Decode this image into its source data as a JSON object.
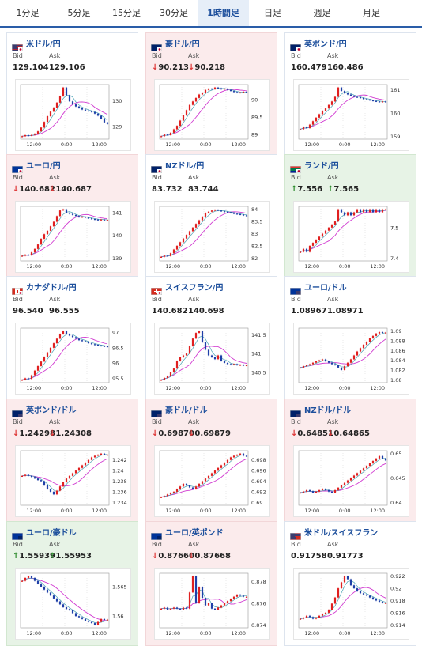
{
  "tabs": [
    "1分足",
    "5分足",
    "15分足",
    "30分足",
    "1時間足",
    "日足",
    "週足",
    "月足"
  ],
  "active_tab": 4,
  "bid_label": "Bid",
  "ask_label": "Ask",
  "cards": [
    {
      "name": "米ドル/円",
      "bid": "129.104",
      "ask": "129.106",
      "dir": "none",
      "flag": "flag-us-jp-icon",
      "y_ticks": [
        "130",
        "129"
      ],
      "x_ticks": [
        "12:00",
        "0:00",
        "12:00"
      ],
      "series": [
        128.62,
        128.66,
        128.64,
        128.67,
        128.72,
        128.81,
        128.96,
        129.18,
        129.4,
        129.58,
        129.74,
        129.93,
        130.18,
        130.52,
        130.22,
        129.98,
        129.86,
        129.78,
        129.72,
        129.66,
        129.62,
        129.6,
        129.56,
        129.5,
        129.42,
        129.3,
        129.16,
        129.1
      ]
    },
    {
      "name": "豪ドル/円",
      "bid": "90.213",
      "ask": "90.218",
      "dir": "down",
      "flag": "flag-au-jp-icon",
      "y_ticks": [
        "90",
        "89.5",
        "89"
      ],
      "x_ticks": [
        "12:00",
        "0:00",
        "12:00"
      ],
      "series": [
        88.95,
        89.0,
        88.98,
        89.05,
        89.15,
        89.25,
        89.4,
        89.55,
        89.7,
        89.85,
        89.95,
        90.05,
        90.15,
        90.2,
        90.28,
        90.32,
        90.3,
        90.35,
        90.33,
        90.3,
        90.32,
        90.28,
        90.25,
        90.22,
        90.2,
        90.21,
        90.23,
        90.21
      ]
    },
    {
      "name": "英ポンド/円",
      "bid": "160.479",
      "ask": "160.486",
      "dir": "none",
      "flag": "flag-gb-jp-icon",
      "y_ticks": [
        "161",
        "160",
        "159"
      ],
      "x_ticks": [
        "12:00",
        "0:00",
        "12:00"
      ],
      "series": [
        159.3,
        159.4,
        159.35,
        159.5,
        159.65,
        159.8,
        159.95,
        160.1,
        160.2,
        160.35,
        160.5,
        160.7,
        161.1,
        160.95,
        160.85,
        160.8,
        160.75,
        160.7,
        160.68,
        160.65,
        160.6,
        160.58,
        160.55,
        160.52,
        160.5,
        160.48,
        160.5,
        160.48
      ]
    },
    {
      "name": "ユーロ/円",
      "bid": "140.682",
      "ask": "140.687",
      "dir": "down",
      "flag": "flag-eu-jp-icon",
      "y_ticks": [
        "141",
        "140",
        "139"
      ],
      "x_ticks": [
        "12:00",
        "0:00",
        "12:00"
      ],
      "series": [
        139.1,
        139.15,
        139.12,
        139.25,
        139.4,
        139.6,
        139.85,
        140.05,
        140.2,
        140.4,
        140.6,
        140.85,
        141.1,
        141.15,
        141.0,
        140.95,
        140.9,
        140.85,
        140.8,
        140.82,
        140.78,
        140.75,
        140.72,
        140.7,
        140.69,
        140.7,
        140.68,
        140.68
      ]
    },
    {
      "name": "NZドル/円",
      "bid": "83.732",
      "ask": "83.744",
      "dir": "none",
      "flag": "flag-nz-jp-icon",
      "y_ticks": [
        "84",
        "83.5",
        "83",
        "82.5",
        "82"
      ],
      "x_ticks": [
        "12:00",
        "0:00",
        "12:00"
      ],
      "series": [
        82.05,
        82.1,
        82.08,
        82.2,
        82.35,
        82.5,
        82.65,
        82.8,
        82.95,
        83.1,
        83.25,
        83.4,
        83.55,
        83.7,
        83.85,
        83.9,
        83.95,
        83.98,
        83.95,
        83.92,
        83.9,
        83.88,
        83.85,
        83.82,
        83.8,
        83.78,
        83.75,
        83.74
      ]
    },
    {
      "name": "ランド/円",
      "bid": "7.556",
      "ask": "7.565",
      "dir": "up",
      "flag": "flag-za-jp-icon",
      "y_ticks": [
        "7.5",
        "7.5",
        "7.4"
      ],
      "x_ticks": [
        "12:00",
        "0:00",
        "12:00"
      ],
      "series": [
        7.42,
        7.43,
        7.42,
        7.44,
        7.45,
        7.46,
        7.47,
        7.48,
        7.49,
        7.5,
        7.51,
        7.52,
        7.56,
        7.55,
        7.54,
        7.55,
        7.54,
        7.55,
        7.56,
        7.55,
        7.56,
        7.55,
        7.56,
        7.55,
        7.56,
        7.55,
        7.56,
        7.56
      ]
    },
    {
      "name": "カナダドル/円",
      "bid": "96.540",
      "ask": "96.555",
      "dir": "none",
      "flag": "flag-ca-jp-icon",
      "y_ticks": [
        "97",
        "96.5",
        "96",
        "95.5"
      ],
      "x_ticks": [
        "12:00",
        "0:00",
        "12:00"
      ],
      "series": [
        95.45,
        95.5,
        95.48,
        95.6,
        95.75,
        95.9,
        96.05,
        96.2,
        96.35,
        96.5,
        96.65,
        96.8,
        96.95,
        97.05,
        96.95,
        96.9,
        96.85,
        96.8,
        96.75,
        96.72,
        96.7,
        96.65,
        96.62,
        96.6,
        96.58,
        96.56,
        96.55,
        96.54
      ]
    },
    {
      "name": "スイスフラン/円",
      "bid": "140.682",
      "ask": "140.698",
      "dir": "none",
      "flag": "flag-ch-jp-icon",
      "y_ticks": [
        "141.5",
        "141",
        "140.5"
      ],
      "x_ticks": [
        "12:00",
        "0:00",
        "12:00"
      ],
      "series": [
        140.3,
        140.35,
        140.4,
        140.5,
        140.6,
        140.8,
        140.9,
        140.95,
        141.0,
        141.2,
        141.4,
        141.55,
        141.6,
        141.3,
        141.1,
        140.95,
        140.9,
        140.85,
        140.95,
        140.8,
        140.75,
        140.72,
        140.7,
        140.72,
        140.69,
        140.7,
        140.68,
        140.69
      ]
    },
    {
      "name": "ユーロ/ドル",
      "bid": "1.08967",
      "ask": "1.08971",
      "dir": "none",
      "flag": "flag-eu-us-icon",
      "y_ticks": [
        "1.09",
        "1.088",
        "1.086",
        "1.084",
        "1.082",
        "1.08"
      ],
      "x_ticks": [
        "12:00",
        "0:00",
        "12:00"
      ],
      "series": [
        1.0825,
        1.0828,
        1.083,
        1.0832,
        1.0835,
        1.0838,
        1.084,
        1.0842,
        1.0838,
        1.0835,
        1.0832,
        1.083,
        1.0825,
        1.082,
        1.0828,
        1.0835,
        1.0842,
        1.085,
        1.0858,
        1.0865,
        1.0872,
        1.0878,
        1.0885,
        1.089,
        1.0895,
        1.0898,
        1.0897,
        1.0897
      ]
    },
    {
      "name": "英ポンド/ドル",
      "bid": "1.24298",
      "ask": "1.24308",
      "dir": "down",
      "flag": "flag-gb-us-icon",
      "y_ticks": [
        "1.242",
        "1.24",
        "1.238",
        "1.236",
        "1.234"
      ],
      "x_ticks": [
        "12:00",
        "0:00",
        "12:00"
      ],
      "series": [
        1.239,
        1.2392,
        1.239,
        1.2388,
        1.2385,
        1.2382,
        1.238,
        1.2372,
        1.2365,
        1.236,
        1.2355,
        1.2362,
        1.237,
        1.2378,
        1.2385,
        1.239,
        1.2395,
        1.24,
        1.2405,
        1.241,
        1.2415,
        1.242,
        1.2425,
        1.2428,
        1.243,
        1.2432,
        1.243,
        1.243
      ]
    },
    {
      "name": "豪ドル/ドル",
      "bid": "0.69870",
      "ask": "0.69879",
      "dir": "down",
      "flag": "flag-au-us-icon",
      "y_ticks": [
        "0.698",
        "0.696",
        "0.694",
        "0.692",
        "0.69"
      ],
      "x_ticks": [
        "12:00",
        "0:00",
        "12:00"
      ],
      "series": [
        0.691,
        0.6912,
        0.6915,
        0.6918,
        0.692,
        0.6925,
        0.693,
        0.6935,
        0.6932,
        0.6928,
        0.6925,
        0.693,
        0.6935,
        0.694,
        0.6945,
        0.695,
        0.6955,
        0.696,
        0.6965,
        0.697,
        0.6975,
        0.698,
        0.6985,
        0.6988,
        0.699,
        0.6992,
        0.6988,
        0.6987
      ]
    },
    {
      "name": "NZドル/ドル",
      "bid": "0.64851",
      "ask": "0.64865",
      "dir": "down",
      "flag": "flag-nz-us-icon",
      "y_ticks": [
        "0.65",
        "0.645",
        "0.64"
      ],
      "x_ticks": [
        "12:00",
        "0:00",
        "12:00"
      ],
      "series": [
        0.642,
        0.6422,
        0.6425,
        0.6423,
        0.642,
        0.6422,
        0.6425,
        0.6428,
        0.6425,
        0.6422,
        0.642,
        0.6425,
        0.643,
        0.6435,
        0.644,
        0.6445,
        0.645,
        0.6455,
        0.646,
        0.6465,
        0.647,
        0.6475,
        0.648,
        0.6485,
        0.649,
        0.6495,
        0.649,
        0.6486
      ]
    },
    {
      "name": "ユーロ/豪ドル",
      "bid": "1.55939",
      "ask": "1.55953",
      "dir": "up",
      "flag": "flag-eu-au-icon",
      "y_ticks": [
        "1.565",
        "1.56"
      ],
      "x_ticks": [
        "12:00",
        "0:00",
        "12:00"
      ],
      "series": [
        1.566,
        1.5665,
        1.5668,
        1.5665,
        1.566,
        1.5655,
        1.565,
        1.5645,
        1.564,
        1.5635,
        1.563,
        1.5625,
        1.562,
        1.5615,
        1.5612,
        1.561,
        1.5605,
        1.56,
        1.5598,
        1.5595,
        1.5592,
        1.559,
        1.5588,
        1.5585,
        1.559,
        1.5595,
        1.5594,
        1.5594
      ]
    },
    {
      "name": "ユーロ/英ポンド",
      "bid": "0.87660",
      "ask": "0.87668",
      "dir": "down",
      "flag": "flag-eu-gb-icon",
      "y_ticks": [
        "0.878",
        "0.876",
        "0.874"
      ],
      "x_ticks": [
        "12:00",
        "0:00",
        "12:00"
      ],
      "series": [
        0.8755,
        0.8756,
        0.8754,
        0.8755,
        0.8756,
        0.8755,
        0.8754,
        0.8756,
        0.8755,
        0.877,
        0.8785,
        0.876,
        0.8775,
        0.8765,
        0.8758,
        0.876,
        0.8755,
        0.8754,
        0.8756,
        0.8758,
        0.876,
        0.8762,
        0.8764,
        0.8766,
        0.8768,
        0.8767,
        0.8766,
        0.8766
      ]
    },
    {
      "name": "米ドル/スイスフラン",
      "bid": "0.91758",
      "ask": "0.91773",
      "dir": "none",
      "flag": "flag-us-ch-icon",
      "y_ticks": [
        "0.922",
        "0.92",
        "0.918",
        "0.916",
        "0.914"
      ],
      "x_ticks": [
        "12:00",
        "0:00",
        "12:00"
      ],
      "series": [
        0.915,
        0.9152,
        0.9155,
        0.9153,
        0.915,
        0.9152,
        0.9155,
        0.9158,
        0.916,
        0.9165,
        0.9175,
        0.9185,
        0.92,
        0.921,
        0.922,
        0.9215,
        0.9205,
        0.92,
        0.9195,
        0.9192,
        0.919,
        0.9188,
        0.9185,
        0.9182,
        0.918,
        0.9178,
        0.9176,
        0.9176
      ]
    }
  ]
}
